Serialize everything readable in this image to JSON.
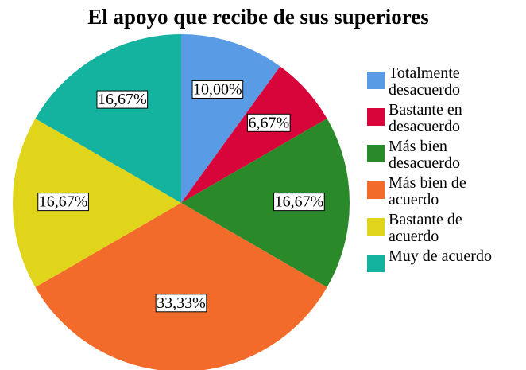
{
  "chart_data": {
    "type": "pie",
    "title": "El apoyo que recibe de sus superiores",
    "categories": [
      "Totalmente\ndesacuerdo",
      "Bastante en\ndesacuerdo",
      "Más bien\ndesacuerdo",
      "Más bien de\nacuerdo",
      "Bastante de\nacuerdo",
      "Muy de acuerdo"
    ],
    "values": [
      10,
      6.67,
      16.67,
      33.33,
      16.67,
      16.67
    ],
    "value_labels": [
      "10,00%",
      "6,67%",
      "16,67%",
      "33,33%",
      "16,67%",
      "16,67%"
    ],
    "colors": [
      "#5a9be6",
      "#d8053a",
      "#2a8a2a",
      "#f26b2a",
      "#e0d51a",
      "#14b3a0"
    ],
    "legend": "right"
  }
}
